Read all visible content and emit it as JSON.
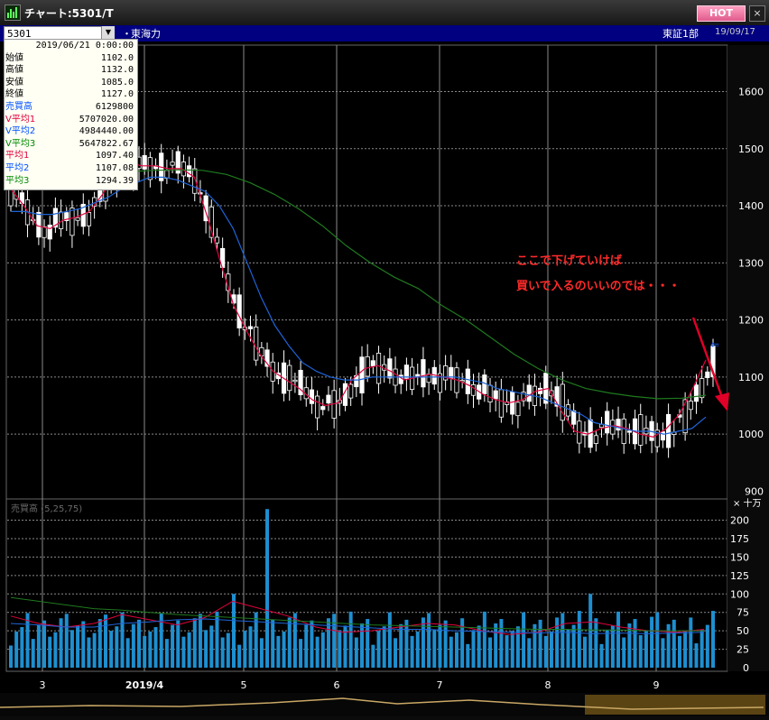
{
  "window": {
    "title": "チャート:5301/T",
    "hot_label": "HOT",
    "close_label": "×"
  },
  "infobar": {
    "code": "5301",
    "bullet": "・",
    "stock_name": "東海力",
    "market": "東証1部",
    "date": "19/09/17"
  },
  "data_panel": {
    "datetime": "2019/06/21 0:00:00",
    "rows": [
      {
        "label": "始値",
        "value": "1102.0",
        "color": "#000000"
      },
      {
        "label": "高値",
        "value": "1132.0",
        "color": "#000000"
      },
      {
        "label": "安値",
        "value": "1085.0",
        "color": "#000000"
      },
      {
        "label": "終値",
        "value": "1127.0",
        "color": "#000000"
      },
      {
        "label": "売買高",
        "value": "6129800",
        "color": "#0050ff"
      },
      {
        "label": "V平均1",
        "value": "5707020.00",
        "color": "#e0003c"
      },
      {
        "label": "V平均2",
        "value": "4984440.00",
        "color": "#0050ff"
      },
      {
        "label": "V平均3",
        "value": "5647822.67",
        "color": "#008a00"
      },
      {
        "label": "平均1",
        "value": "1097.40",
        "color": "#e0003c"
      },
      {
        "label": "平均2",
        "value": "1107.08",
        "color": "#0050ff"
      },
      {
        "label": "平均3",
        "value": "1294.39",
        "color": "#008a00"
      }
    ]
  },
  "annotation": {
    "line1": "ここで下げていけば",
    "line2": "買いで入るのいいのでは・・・"
  },
  "volume_panel": {
    "label": "売買高 (5,25,75)",
    "unit": "× 十万"
  },
  "colors": {
    "ma1": "#e0003c",
    "ma2": "#1e64d8",
    "ma3": "#1f7a1f",
    "volume": "#1e8fd0",
    "arrow": "#e00028",
    "grid": "#8a8a8a",
    "axis_text": "#ffffff"
  },
  "chart_data": [
    {
      "type": "candlestick",
      "title": "",
      "yticks": [
        900,
        1000,
        1100,
        1200,
        1300,
        1400,
        1500,
        1600
      ],
      "ylim": [
        885,
        1660
      ],
      "xticks": [
        "3",
        "2019/4",
        "5",
        "6",
        "7",
        "8",
        "9"
      ],
      "series": [
        {
          "name": "平均1",
          "values": [
            1430,
            1400,
            1365,
            1360,
            1375,
            1380,
            1390,
            1420,
            1460,
            1475,
            1470,
            1470,
            1465,
            1465,
            1450,
            1380,
            1300,
            1225,
            1180,
            1140,
            1110,
            1095,
            1080,
            1060,
            1050,
            1055,
            1095,
            1115,
            1120,
            1110,
            1095,
            1100,
            1105,
            1100,
            1095,
            1085,
            1070,
            1060,
            1055,
            1060,
            1075,
            1080,
            1040,
            1005,
            1000,
            1010,
            1015,
            1010,
            1000,
            995,
            1010,
            1035,
            1080,
            1130
          ]
        },
        {
          "name": "平均2",
          "values": [
            1390,
            1390,
            1385,
            1385,
            1390,
            1395,
            1405,
            1415,
            1430,
            1440,
            1450,
            1450,
            1445,
            1435,
            1425,
            1400,
            1360,
            1300,
            1240,
            1190,
            1155,
            1125,
            1110,
            1100,
            1095,
            1095,
            1100,
            1100,
            1100,
            1100,
            1100,
            1100,
            1100,
            1095,
            1090,
            1080,
            1075,
            1070,
            1065,
            1055,
            1045,
            1035,
            1020,
            1015,
            1010,
            1005,
            1005,
            1000,
            1005,
            1010,
            1030
          ]
        },
        {
          "name": "平均3",
          "values": [
            1440,
            1445,
            1450,
            1455,
            1458,
            1460,
            1462,
            1463,
            1462,
            1455,
            1440,
            1420,
            1395,
            1365,
            1330,
            1300,
            1275,
            1255,
            1225,
            1200,
            1170,
            1140,
            1115,
            1095,
            1080,
            1072,
            1066,
            1062,
            1063,
            1068
          ]
        }
      ]
    },
    {
      "type": "bar",
      "title": "売買高 (5,25,75)",
      "ylabel": "× 十万",
      "yticks": [
        0,
        25,
        50,
        75,
        100,
        125,
        150,
        175,
        200
      ],
      "ylim": [
        0,
        210
      ],
      "peak_value": 215
    }
  ]
}
